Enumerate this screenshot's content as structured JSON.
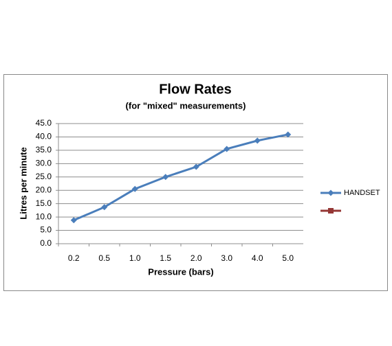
{
  "chart_data": {
    "type": "line",
    "title": "Flow Rates",
    "subtitle": "(for \"mixed\"  measurements)",
    "x_label": "Pressure (bars)",
    "y_label": "Litres per minute",
    "categories": [
      "0.2",
      "0.5",
      "1.0",
      "1.5",
      "2.0",
      "3.0",
      "4.0",
      "5.0"
    ],
    "series": [
      {
        "name": "HANDSET",
        "color": "#4a7ebb",
        "values": [
          8.8,
          13.7,
          20.5,
          25.0,
          28.8,
          35.5,
          38.6,
          40.9
        ]
      },
      {
        "color": "#953735",
        "values": [
          null,
          null,
          null,
          null,
          null,
          null,
          null,
          null
        ]
      }
    ],
    "ylim": [
      0,
      45
    ],
    "yticks": [
      {
        "value": 0,
        "label": "0.0"
      },
      {
        "value": 5,
        "label": "5.0"
      },
      {
        "value": 10,
        "label": "10.0"
      },
      {
        "value": 15,
        "label": "15.0"
      },
      {
        "value": 20,
        "label": "20.0"
      },
      {
        "value": 25,
        "label": "25.0"
      },
      {
        "value": 30,
        "label": "30.0"
      },
      {
        "value": 35,
        "label": "35.0"
      },
      {
        "value": 40,
        "label": "40.0"
      },
      {
        "value": 45,
        "label": "45.0"
      }
    ],
    "grid": true,
    "legend": "right"
  }
}
